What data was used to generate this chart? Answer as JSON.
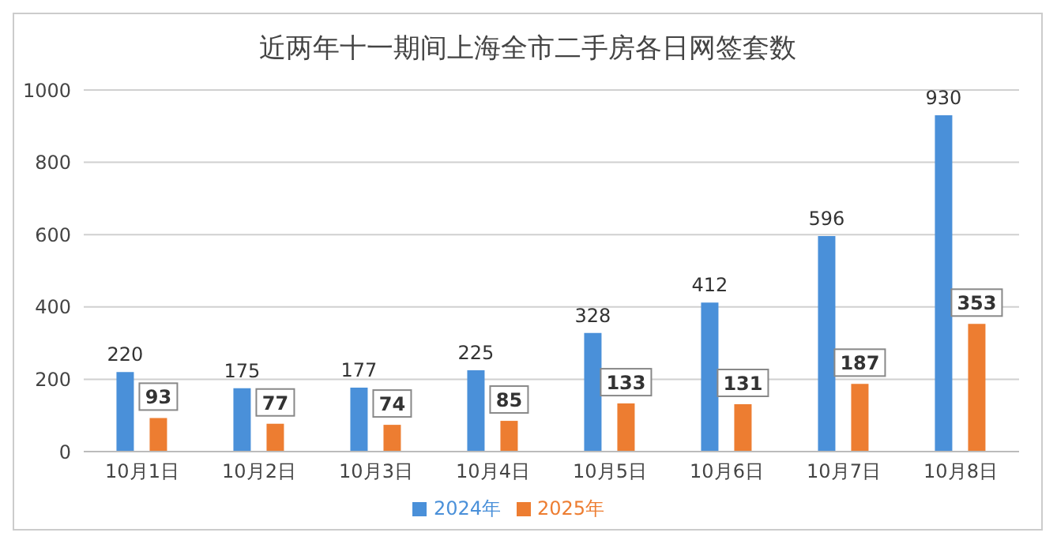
{
  "chart_data": {
    "type": "bar",
    "title": "近两年十一期间上海全市二手房各日网签套数",
    "categories": [
      "10月1日",
      "10月2日",
      "10月3日",
      "10月4日",
      "10月5日",
      "10月6日",
      "10月7日",
      "10月8日"
    ],
    "series": [
      {
        "name": "2024年",
        "color": "#4a90d9",
        "values": [
          220,
          175,
          177,
          225,
          328,
          412,
          596,
          930
        ]
      },
      {
        "name": "2025年",
        "color": "#ed7d31",
        "values": [
          93,
          77,
          74,
          85,
          133,
          131,
          187,
          353
        ]
      }
    ],
    "ylim": [
      0,
      1000
    ],
    "yticks": [
      0,
      200,
      400,
      600,
      800,
      1000
    ],
    "grid": "y",
    "legend": "bottom",
    "data_labels": true
  }
}
